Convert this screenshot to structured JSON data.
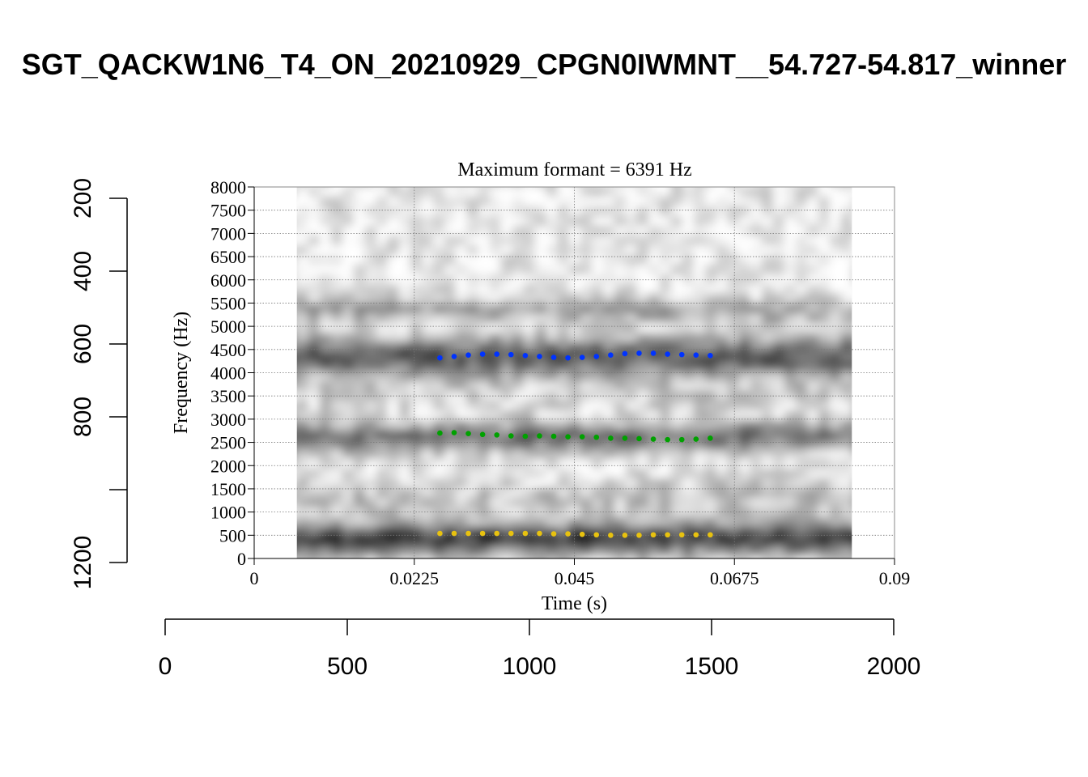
{
  "title": "SGT_QACKW1N6_T4_ON_20210929_CPGN0IWMNT__54.727-54.817_winner",
  "chart_data": {
    "type": "scatter",
    "subtitle": "Maximum formant  =  6391 Hz",
    "xlabel": "Time (s)",
    "ylabel": "Frequency (Hz)",
    "xlim": [
      0,
      0.09
    ],
    "ylim": [
      0,
      8000
    ],
    "x_ticks": [
      "0",
      "0.0225",
      "0.045",
      "0.0675",
      "0.09"
    ],
    "y_ticks": [
      "0",
      "500",
      "1000",
      "1500",
      "2000",
      "2500",
      "3000",
      "3500",
      "4000",
      "4500",
      "5000",
      "5500",
      "6000",
      "6500",
      "7000",
      "7500",
      "8000"
    ],
    "spectrogram_time_range": [
      0.006,
      0.084
    ],
    "grid": true,
    "outer_x_axis": {
      "range": [
        0,
        2000
      ],
      "ticks": [
        "0",
        "500",
        "1000",
        "1500",
        "2000"
      ]
    },
    "outer_y_axis": {
      "range": [
        200,
        1200
      ],
      "reversed": true,
      "ticks": [
        "200",
        "400",
        "600",
        "800",
        "1200"
      ],
      "extra_tick_value": 1000
    },
    "times": [
      0.0261,
      0.0281,
      0.0301,
      0.0321,
      0.0341,
      0.0361,
      0.0381,
      0.0401,
      0.0421,
      0.0441,
      0.0461,
      0.0481,
      0.0501,
      0.0521,
      0.0541,
      0.0561,
      0.0581,
      0.0601,
      0.0621,
      0.0641
    ],
    "series": [
      {
        "color": "#e8c20f",
        "values": [
          540,
          540,
          540,
          540,
          540,
          540,
          540,
          540,
          530,
          530,
          520,
          510,
          500,
          500,
          500,
          510,
          510,
          510,
          510,
          510
        ]
      },
      {
        "color": "#00a100",
        "values": [
          2700,
          2710,
          2690,
          2670,
          2660,
          2640,
          2630,
          2640,
          2630,
          2620,
          2620,
          2610,
          2590,
          2590,
          2580,
          2570,
          2560,
          2560,
          2570,
          2590
        ]
      },
      {
        "color": "#0033ff",
        "values": [
          4320,
          4350,
          4380,
          4400,
          4400,
          4390,
          4370,
          4350,
          4330,
          4320,
          4330,
          4350,
          4380,
          4410,
          4420,
          4420,
          4400,
          4390,
          4380,
          4370
        ]
      }
    ]
  }
}
